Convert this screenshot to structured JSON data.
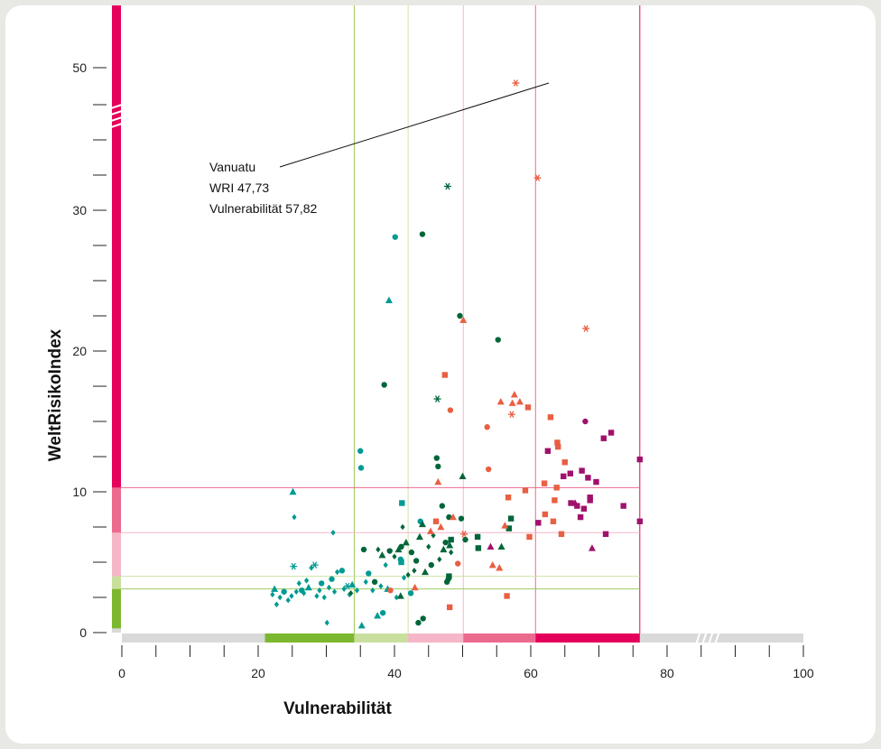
{
  "chart_data": {
    "type": "scatter",
    "xlabel": "Vulnerabilität",
    "ylabel": "WeltRisikoIndex",
    "xlim": [
      0,
      100
    ],
    "ylim": [
      0,
      50
    ],
    "x_ticks": [
      0,
      20,
      40,
      60,
      80,
      100
    ],
    "y_ticks": [
      0,
      10,
      20,
      30,
      50
    ],
    "x_axis_broken": true,
    "y_axis_broken": true,
    "grid": false,
    "threshold_lines": {
      "x": [
        34.1,
        42.0,
        50.1,
        60.7,
        76.0
      ],
      "y": [
        3.1,
        4.0,
        7.1,
        10.3,
        49.1
      ]
    },
    "vulnerability_bands": [
      {
        "from": 21.0,
        "to": 34.1,
        "color": "#7cb82f"
      },
      {
        "from": 34.1,
        "to": 42.0,
        "color": "#c9df9d"
      },
      {
        "from": 42.0,
        "to": 50.1,
        "color": "#f5b6c8"
      },
      {
        "from": 50.1,
        "to": 60.7,
        "color": "#ec6a8e"
      },
      {
        "from": 60.7,
        "to": 76.0,
        "color": "#e5005b"
      }
    ],
    "risk_bands": [
      {
        "from": 0.3,
        "to": 3.1,
        "color": "#7cb82f"
      },
      {
        "from": 3.1,
        "to": 4.0,
        "color": "#c9df9d"
      },
      {
        "from": 4.0,
        "to": 7.1,
        "color": "#f5b6c8"
      },
      {
        "from": 7.1,
        "to": 10.3,
        "color": "#ec6a8e"
      },
      {
        "from": 10.3,
        "to": 49.1,
        "color": "#e5005b"
      }
    ],
    "annotation": {
      "lines": [
        "Vanuatu",
        "WRI 47,73",
        "Vulnerabilität 57,82"
      ],
      "point": {
        "x": 57.82,
        "y": 47.73
      }
    },
    "series": [
      {
        "color": "#009a93",
        "points": [
          {
            "x": 22.1,
            "y": 2.7,
            "m": "diamond"
          },
          {
            "x": 22.4,
            "y": 3.1,
            "m": "triangle"
          },
          {
            "x": 22.7,
            "y": 2.0,
            "m": "diamond"
          },
          {
            "x": 23.2,
            "y": 2.5,
            "m": "diamond"
          },
          {
            "x": 23.8,
            "y": 2.9,
            "m": "circle"
          },
          {
            "x": 24.4,
            "y": 2.3,
            "m": "diamond"
          },
          {
            "x": 24.9,
            "y": 2.6,
            "m": "diamond"
          },
          {
            "x": 25.1,
            "y": 10.0,
            "m": "triangle"
          },
          {
            "x": 25.3,
            "y": 8.2,
            "m": "diamond"
          },
          {
            "x": 25.2,
            "y": 4.7,
            "m": "star"
          },
          {
            "x": 25.6,
            "y": 2.9,
            "m": "diamond"
          },
          {
            "x": 26.0,
            "y": 3.5,
            "m": "diamond"
          },
          {
            "x": 26.4,
            "y": 3.0,
            "m": "circle"
          },
          {
            "x": 26.7,
            "y": 2.8,
            "m": "diamond"
          },
          {
            "x": 27.1,
            "y": 3.7,
            "m": "diamond"
          },
          {
            "x": 27.4,
            "y": 3.2,
            "m": "triangle"
          },
          {
            "x": 27.8,
            "y": 4.6,
            "m": "diamond"
          },
          {
            "x": 28.3,
            "y": 4.8,
            "m": "star"
          },
          {
            "x": 28.6,
            "y": 2.6,
            "m": "diamond"
          },
          {
            "x": 29.0,
            "y": 3.0,
            "m": "diamond"
          },
          {
            "x": 29.3,
            "y": 3.5,
            "m": "circle"
          },
          {
            "x": 29.7,
            "y": 2.5,
            "m": "diamond"
          },
          {
            "x": 30.1,
            "y": 0.7,
            "m": "diamond"
          },
          {
            "x": 30.4,
            "y": 3.2,
            "m": "diamond"
          },
          {
            "x": 30.8,
            "y": 3.8,
            "m": "circle"
          },
          {
            "x": 31.2,
            "y": 2.9,
            "m": "diamond"
          },
          {
            "x": 31.6,
            "y": 4.3,
            "m": "diamond"
          },
          {
            "x": 31.0,
            "y": 7.1,
            "m": "diamond"
          },
          {
            "x": 32.3,
            "y": 4.4,
            "m": "circle"
          },
          {
            "x": 32.6,
            "y": 3.1,
            "m": "diamond"
          },
          {
            "x": 33.1,
            "y": 3.3,
            "m": "star"
          },
          {
            "x": 33.4,
            "y": 2.7,
            "m": "diamond"
          },
          {
            "x": 33.8,
            "y": 3.4,
            "m": "triangle"
          },
          {
            "x": 34.5,
            "y": 3.0,
            "m": "diamond"
          },
          {
            "x": 35.0,
            "y": 12.9,
            "m": "circle"
          },
          {
            "x": 35.1,
            "y": 11.7,
            "m": "circle"
          },
          {
            "x": 35.2,
            "y": 0.5,
            "m": "triangle"
          },
          {
            "x": 35.8,
            "y": 3.6,
            "m": "diamond"
          },
          {
            "x": 36.2,
            "y": 4.2,
            "m": "circle"
          },
          {
            "x": 36.8,
            "y": 3.0,
            "m": "diamond"
          },
          {
            "x": 37.5,
            "y": 1.2,
            "m": "triangle"
          },
          {
            "x": 38.0,
            "y": 3.3,
            "m": "diamond"
          },
          {
            "x": 38.3,
            "y": 1.4,
            "m": "circle"
          },
          {
            "x": 38.7,
            "y": 4.8,
            "m": "diamond"
          },
          {
            "x": 39.0,
            "y": 3.1,
            "m": "triangle"
          },
          {
            "x": 39.2,
            "y": 23.6,
            "m": "triangle"
          },
          {
            "x": 40.1,
            "y": 28.1,
            "m": "circle"
          },
          {
            "x": 40.3,
            "y": 2.5,
            "m": "diamond"
          },
          {
            "x": 40.9,
            "y": 5.2,
            "m": "circle"
          },
          {
            "x": 41.1,
            "y": 9.2,
            "m": "square"
          },
          {
            "x": 41.4,
            "y": 3.9,
            "m": "diamond"
          },
          {
            "x": 41.0,
            "y": 5.0,
            "m": "square"
          },
          {
            "x": 42.4,
            "y": 2.8,
            "m": "circle"
          },
          {
            "x": 43.8,
            "y": 7.9,
            "m": "circle"
          }
        ]
      },
      {
        "color": "#00663a",
        "points": [
          {
            "x": 33.6,
            "y": 2.8,
            "m": "diamond"
          },
          {
            "x": 35.5,
            "y": 5.9,
            "m": "circle"
          },
          {
            "x": 37.1,
            "y": 3.6,
            "m": "circle"
          },
          {
            "x": 37.6,
            "y": 5.9,
            "m": "diamond"
          },
          {
            "x": 38.2,
            "y": 5.5,
            "m": "triangle"
          },
          {
            "x": 38.5,
            "y": 17.6,
            "m": "circle"
          },
          {
            "x": 39.3,
            "y": 5.8,
            "m": "circle"
          },
          {
            "x": 40.0,
            "y": 5.4,
            "m": "diamond"
          },
          {
            "x": 40.6,
            "y": 5.9,
            "m": "triangle"
          },
          {
            "x": 41.0,
            "y": 6.1,
            "m": "circle"
          },
          {
            "x": 41.2,
            "y": 7.5,
            "m": "diamond"
          },
          {
            "x": 41.7,
            "y": 6.4,
            "m": "triangle"
          },
          {
            "x": 42.0,
            "y": 4.1,
            "m": "diamond"
          },
          {
            "x": 42.5,
            "y": 5.7,
            "m": "circle"
          },
          {
            "x": 42.9,
            "y": 4.4,
            "m": "diamond"
          },
          {
            "x": 43.2,
            "y": 5.1,
            "m": "circle"
          },
          {
            "x": 43.7,
            "y": 6.8,
            "m": "triangle"
          },
          {
            "x": 44.1,
            "y": 28.3,
            "m": "circle"
          },
          {
            "x": 44.1,
            "y": 7.7,
            "m": "triangle"
          },
          {
            "x": 44.5,
            "y": 4.3,
            "m": "triangle"
          },
          {
            "x": 45.0,
            "y": 6.1,
            "m": "diamond"
          },
          {
            "x": 45.4,
            "y": 4.8,
            "m": "circle"
          },
          {
            "x": 45.7,
            "y": 6.9,
            "m": "diamond"
          },
          {
            "x": 46.2,
            "y": 12.4,
            "m": "circle"
          },
          {
            "x": 46.3,
            "y": 16.6,
            "m": "star"
          },
          {
            "x": 46.4,
            "y": 11.8,
            "m": "circle"
          },
          {
            "x": 46.6,
            "y": 5.2,
            "m": "diamond"
          },
          {
            "x": 47.0,
            "y": 9.0,
            "m": "circle"
          },
          {
            "x": 47.2,
            "y": 5.9,
            "m": "triangle"
          },
          {
            "x": 47.5,
            "y": 6.4,
            "m": "circle"
          },
          {
            "x": 47.7,
            "y": 3.6,
            "m": "circle"
          },
          {
            "x": 47.8,
            "y": 31.7,
            "m": "star"
          },
          {
            "x": 48.0,
            "y": 8.2,
            "m": "circle"
          },
          {
            "x": 48.1,
            "y": 6.2,
            "m": "triangle"
          },
          {
            "x": 48.3,
            "y": 5.7,
            "m": "diamond"
          },
          {
            "x": 49.6,
            "y": 22.5,
            "m": "circle"
          },
          {
            "x": 49.8,
            "y": 8.1,
            "m": "circle"
          },
          {
            "x": 50.0,
            "y": 11.1,
            "m": "triangle"
          },
          {
            "x": 48.3,
            "y": 6.6,
            "m": "square"
          },
          {
            "x": 48.0,
            "y": 4.0,
            "m": "square"
          },
          {
            "x": 47.9,
            "y": 3.8,
            "m": "circle"
          },
          {
            "x": 44.2,
            "y": 1.0,
            "m": "circle"
          },
          {
            "x": 43.5,
            "y": 0.7,
            "m": "circle"
          },
          {
            "x": 40.9,
            "y": 2.6,
            "m": "triangle"
          },
          {
            "x": 50.4,
            "y": 6.6,
            "m": "circle"
          },
          {
            "x": 52.2,
            "y": 6.8,
            "m": "square"
          },
          {
            "x": 52.3,
            "y": 6.0,
            "m": "square"
          },
          {
            "x": 55.2,
            "y": 20.8,
            "m": "circle"
          },
          {
            "x": 55.7,
            "y": 6.1,
            "m": "triangle"
          },
          {
            "x": 56.8,
            "y": 7.4,
            "m": "square"
          },
          {
            "x": 57.1,
            "y": 8.1,
            "m": "square"
          }
        ]
      },
      {
        "color": "#e95f42",
        "points": [
          {
            "x": 39.4,
            "y": 3.0,
            "m": "circle"
          },
          {
            "x": 43.0,
            "y": 3.2,
            "m": "triangle"
          },
          {
            "x": 45.3,
            "y": 7.2,
            "m": "triangle"
          },
          {
            "x": 46.1,
            "y": 7.9,
            "m": "square"
          },
          {
            "x": 46.4,
            "y": 10.7,
            "m": "triangle"
          },
          {
            "x": 46.8,
            "y": 7.5,
            "m": "triangle"
          },
          {
            "x": 47.4,
            "y": 18.3,
            "m": "square"
          },
          {
            "x": 48.2,
            "y": 15.8,
            "m": "circle"
          },
          {
            "x": 48.6,
            "y": 8.2,
            "m": "triangle"
          },
          {
            "x": 49.3,
            "y": 4.9,
            "m": "circle"
          },
          {
            "x": 48.1,
            "y": 1.8,
            "m": "square"
          },
          {
            "x": 50.1,
            "y": 22.2,
            "m": "triangle"
          },
          {
            "x": 50.2,
            "y": 7.0,
            "m": "star"
          },
          {
            "x": 53.6,
            "y": 14.6,
            "m": "circle"
          },
          {
            "x": 53.8,
            "y": 11.6,
            "m": "circle"
          },
          {
            "x": 54.4,
            "y": 4.8,
            "m": "triangle"
          },
          {
            "x": 55.4,
            "y": 4.6,
            "m": "triangle"
          },
          {
            "x": 55.6,
            "y": 16.4,
            "m": "triangle"
          },
          {
            "x": 56.2,
            "y": 7.6,
            "m": "triangle"
          },
          {
            "x": 56.7,
            "y": 9.6,
            "m": "square"
          },
          {
            "x": 56.5,
            "y": 2.6,
            "m": "square"
          },
          {
            "x": 57.2,
            "y": 15.5,
            "m": "star"
          },
          {
            "x": 57.3,
            "y": 16.3,
            "m": "triangle"
          },
          {
            "x": 57.6,
            "y": 16.9,
            "m": "triangle"
          },
          {
            "x": 58.4,
            "y": 16.4,
            "m": "triangle"
          },
          {
            "x": 59.6,
            "y": 16.0,
            "m": "square"
          },
          {
            "x": 59.8,
            "y": 6.8,
            "m": "square"
          },
          {
            "x": 59.2,
            "y": 10.1,
            "m": "square"
          },
          {
            "x": 61.0,
            "y": 32.3,
            "m": "star"
          },
          {
            "x": 62.0,
            "y": 10.6,
            "m": "square"
          },
          {
            "x": 62.1,
            "y": 8.4,
            "m": "square"
          },
          {
            "x": 62.9,
            "y": 15.3,
            "m": "square"
          },
          {
            "x": 63.3,
            "y": 7.9,
            "m": "square"
          },
          {
            "x": 63.5,
            "y": 9.4,
            "m": "square"
          },
          {
            "x": 63.8,
            "y": 10.3,
            "m": "square"
          },
          {
            "x": 64.0,
            "y": 13.2,
            "m": "square"
          },
          {
            "x": 63.9,
            "y": 13.5,
            "m": "square"
          },
          {
            "x": 64.5,
            "y": 7.0,
            "m": "square"
          },
          {
            "x": 65.0,
            "y": 12.1,
            "m": "square"
          },
          {
            "x": 68.1,
            "y": 21.6,
            "m": "star"
          },
          {
            "x": 57.8,
            "y": 47.73,
            "m": "star"
          }
        ]
      },
      {
        "color": "#a0116c",
        "points": [
          {
            "x": 54.1,
            "y": 6.1,
            "m": "triangle"
          },
          {
            "x": 61.1,
            "y": 7.8,
            "m": "square"
          },
          {
            "x": 62.5,
            "y": 12.9,
            "m": "square"
          },
          {
            "x": 64.8,
            "y": 11.1,
            "m": "square"
          },
          {
            "x": 65.8,
            "y": 11.3,
            "m": "square"
          },
          {
            "x": 65.9,
            "y": 9.2,
            "m": "square"
          },
          {
            "x": 66.5,
            "y": 9.2,
            "m": "triangle"
          },
          {
            "x": 66.8,
            "y": 9.0,
            "m": "square"
          },
          {
            "x": 67.3,
            "y": 8.2,
            "m": "square"
          },
          {
            "x": 67.5,
            "y": 11.5,
            "m": "square"
          },
          {
            "x": 67.8,
            "y": 8.8,
            "m": "square"
          },
          {
            "x": 68.0,
            "y": 15.0,
            "m": "circle"
          },
          {
            "x": 68.4,
            "y": 11.0,
            "m": "square"
          },
          {
            "x": 68.7,
            "y": 9.6,
            "m": "square"
          },
          {
            "x": 68.7,
            "y": 9.4,
            "m": "square"
          },
          {
            "x": 69.0,
            "y": 6.0,
            "m": "triangle"
          },
          {
            "x": 69.6,
            "y": 10.7,
            "m": "square"
          },
          {
            "x": 70.7,
            "y": 13.8,
            "m": "square"
          },
          {
            "x": 71.0,
            "y": 7.0,
            "m": "square"
          },
          {
            "x": 71.8,
            "y": 14.2,
            "m": "square"
          },
          {
            "x": 73.6,
            "y": 9.0,
            "m": "square"
          },
          {
            "x": 76.0,
            "y": 12.3,
            "m": "square"
          },
          {
            "x": 76.0,
            "y": 7.9,
            "m": "square"
          }
        ]
      }
    ]
  }
}
